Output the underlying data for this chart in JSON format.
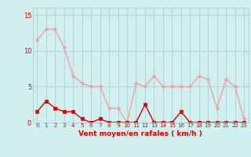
{
  "x": [
    0,
    1,
    2,
    3,
    4,
    5,
    6,
    7,
    8,
    9,
    10,
    11,
    12,
    13,
    14,
    15,
    16,
    17,
    18,
    19,
    20,
    21,
    22,
    23
  ],
  "rafales": [
    11.5,
    13.0,
    13.0,
    10.5,
    6.5,
    5.5,
    5.0,
    5.0,
    2.0,
    2.0,
    0.0,
    5.5,
    5.0,
    6.5,
    5.0,
    5.0,
    5.0,
    5.0,
    6.5,
    6.0,
    2.0,
    6.0,
    5.0,
    0.5
  ],
  "moyen": [
    1.5,
    3.0,
    2.0,
    1.5,
    1.5,
    0.5,
    0.0,
    0.5,
    0.0,
    0.0,
    0.0,
    0.0,
    2.5,
    0.0,
    0.0,
    0.0,
    1.5,
    0.0,
    0.0,
    0.0,
    0.0,
    0.0,
    0.0,
    0.0
  ],
  "color_rafales": "#f0a0a0",
  "color_moyen": "#dd0000",
  "bg_color": "#cff0ee",
  "grid_color": "#b0cccc",
  "tick_color": "#dd0000",
  "xlabel": "Vent moyen/en rafales ( km/h )",
  "ylabel_ticks": [
    0,
    5,
    10,
    15
  ],
  "ylim": [
    0,
    16
  ],
  "xlim": [
    -0.5,
    23.5
  ],
  "marker_size": 2.5,
  "line_width": 1.0
}
